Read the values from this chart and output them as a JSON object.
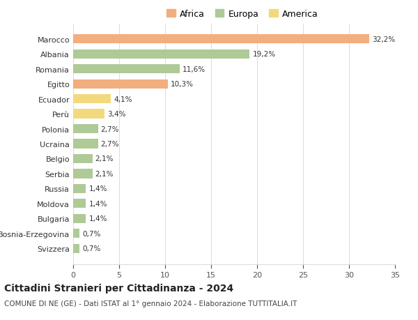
{
  "categories": [
    "Marocco",
    "Albania",
    "Romania",
    "Egitto",
    "Ecuador",
    "Perù",
    "Polonia",
    "Ucraina",
    "Belgio",
    "Serbia",
    "Russia",
    "Moldova",
    "Bulgaria",
    "Bosnia-Erzegovina",
    "Svizzera"
  ],
  "values": [
    32.2,
    19.2,
    11.6,
    10.3,
    4.1,
    3.4,
    2.7,
    2.7,
    2.1,
    2.1,
    1.4,
    1.4,
    1.4,
    0.7,
    0.7
  ],
  "labels": [
    "32,2%",
    "19,2%",
    "11,6%",
    "10,3%",
    "4,1%",
    "3,4%",
    "2,7%",
    "2,7%",
    "2,1%",
    "2,1%",
    "1,4%",
    "1,4%",
    "1,4%",
    "0,7%",
    "0,7%"
  ],
  "continent": [
    "Africa",
    "Europa",
    "Europa",
    "Africa",
    "America",
    "America",
    "Europa",
    "Europa",
    "Europa",
    "Europa",
    "Europa",
    "Europa",
    "Europa",
    "Europa",
    "Europa"
  ],
  "colors": {
    "Africa": "#F2AE7E",
    "Europa": "#AECA96",
    "America": "#F2D97E"
  },
  "legend_labels": [
    "Africa",
    "Europa",
    "America"
  ],
  "legend_colors": [
    "#F2AE7E",
    "#AECA96",
    "#F2D97E"
  ],
  "title": "Cittadini Stranieri per Cittadinanza - 2024",
  "subtitle": "COMUNE DI NE (GE) - Dati ISTAT al 1° gennaio 2024 - Elaborazione TUTTITALIA.IT",
  "xlim": [
    0,
    35
  ],
  "xticks": [
    0,
    5,
    10,
    15,
    20,
    25,
    30,
    35
  ],
  "background_color": "#ffffff",
  "grid_color": "#dddddd",
  "bar_height": 0.62,
  "title_fontsize": 10,
  "subtitle_fontsize": 7.5,
  "tick_fontsize": 8,
  "label_fontsize": 7.5,
  "legend_fontsize": 9
}
